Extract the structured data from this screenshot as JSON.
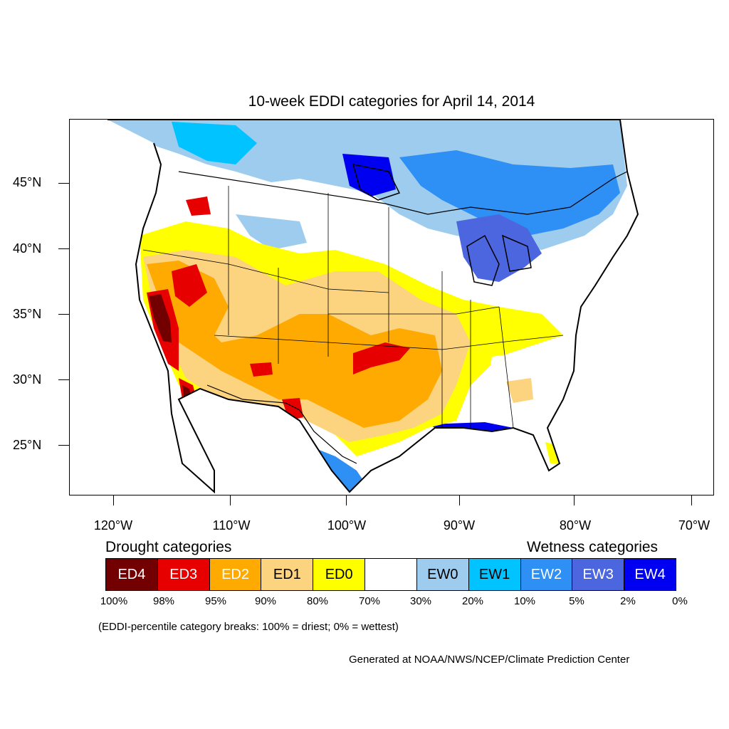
{
  "title": "10-week EDDI categories for April 14, 2014",
  "lat_labels": [
    "45°N",
    "40°N",
    "35°N",
    "30°N",
    "25°N"
  ],
  "lon_labels": [
    "120°W",
    "110°W",
    "100°W",
    "90°W",
    "80°W",
    "70°W"
  ],
  "legend": {
    "drought_heading": "Drought categories",
    "wetness_heading": "Wetness categories",
    "categories": [
      {
        "label": "ED4",
        "color": "#730000",
        "text_color": "#ffffff"
      },
      {
        "label": "ED3",
        "color": "#e60000",
        "text_color": "#ffffff"
      },
      {
        "label": "ED2",
        "color": "#ffaa00",
        "text_color": "#ffffff"
      },
      {
        "label": "ED1",
        "color": "#fcd37f",
        "text_color": "#000000"
      },
      {
        "label": "ED0",
        "color": "#ffff00",
        "text_color": "#000000"
      },
      {
        "label": "",
        "color": "#ffffff",
        "text_color": "#000000"
      },
      {
        "label": "EW0",
        "color": "#9dccee",
        "text_color": "#000000"
      },
      {
        "label": "EW1",
        "color": "#00c3ff",
        "text_color": "#000000"
      },
      {
        "label": "EW2",
        "color": "#2e8ff5",
        "text_color": "#ffffff"
      },
      {
        "label": "EW3",
        "color": "#4c66e0",
        "text_color": "#ffffff"
      },
      {
        "label": "EW4",
        "color": "#0000f0",
        "text_color": "#ffffff"
      }
    ],
    "breaks": [
      "100%",
      "98%",
      "95%",
      "90%",
      "80%",
      "70%",
      "30%",
      "20%",
      "10%",
      "5%",
      "2%",
      "0%"
    ]
  },
  "note": "(EDDI-percentile category breaks: 100% = driest; 0% = wettest)",
  "credit": "Generated at NOAA/NWS/NCEP/Climate Prediction Center",
  "colors": {
    "ed4": "#730000",
    "ed3": "#e60000",
    "ed2": "#ffaa00",
    "ed1": "#fcd37f",
    "ed0": "#ffff00",
    "ew0": "#9dccee",
    "ew1": "#00c3ff",
    "ew2": "#2e8ff5",
    "ew3": "#4c66e0",
    "ew4": "#0000f0"
  }
}
